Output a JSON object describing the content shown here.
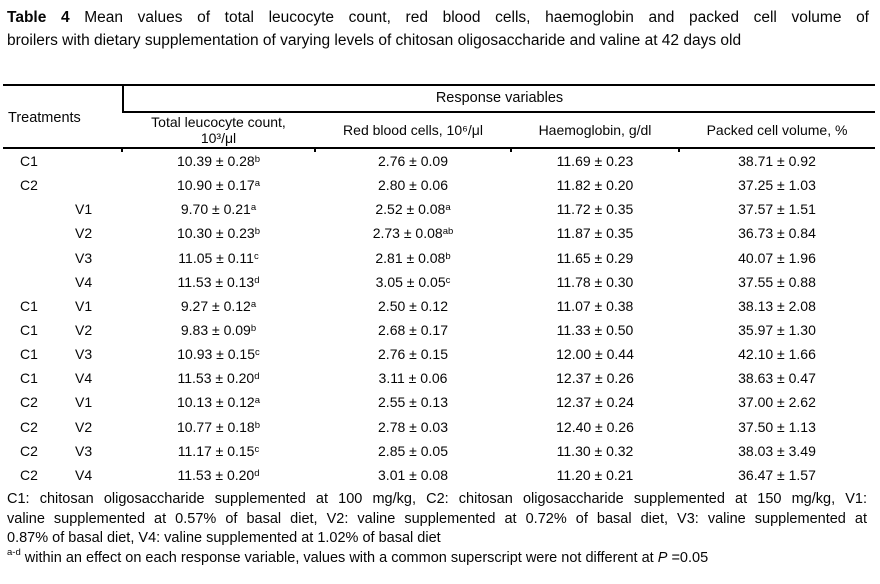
{
  "title": {
    "label": "Table 4",
    "line1_rest": "Mean values of total leucocyte count, red blood cells, haemoglobin and packed cell volume of",
    "line2": "broilers with dietary supplementation of varying levels of chitosan oligosaccharide and valine at 42 days old"
  },
  "table": {
    "treatments_header": "Treatments",
    "group_header": "Response variables",
    "col_headers": [
      {
        "lines": [
          "Total leucocyte count,",
          "10³/μl"
        ]
      },
      {
        "lines": [
          "Red blood cells, 10⁶/μl",
          ""
        ]
      },
      {
        "lines": [
          "Haemoglobin, g/dl",
          ""
        ]
      },
      {
        "lines": [
          "Packed cell volume, %",
          ""
        ]
      }
    ],
    "rows": [
      {
        "t": [
          "C1",
          ""
        ],
        "vals": [
          {
            "v": "10.39 ± 0.28",
            "s": "b"
          },
          {
            "v": "2.76 ± 0.09",
            "s": ""
          },
          {
            "v": "11.69 ± 0.23",
            "s": ""
          },
          {
            "v": "38.71 ± 0.92",
            "s": ""
          }
        ]
      },
      {
        "t": [
          "C2",
          ""
        ],
        "vals": [
          {
            "v": "10.90 ± 0.17",
            "s": "a"
          },
          {
            "v": "2.80 ± 0.06",
            "s": ""
          },
          {
            "v": "11.82 ± 0.20",
            "s": ""
          },
          {
            "v": "37.25 ± 1.03",
            "s": ""
          }
        ]
      },
      {
        "t": [
          "",
          "V1"
        ],
        "vals": [
          {
            "v": "9.70 ± 0.21",
            "s": "a"
          },
          {
            "v": "2.52 ± 0.08",
            "s": "a"
          },
          {
            "v": "11.72 ± 0.35",
            "s": ""
          },
          {
            "v": "37.57 ± 1.51",
            "s": ""
          }
        ]
      },
      {
        "t": [
          "",
          "V2"
        ],
        "vals": [
          {
            "v": "10.30 ± 0.23",
            "s": "b"
          },
          {
            "v": "2.73 ± 0.08",
            "s": "ab"
          },
          {
            "v": "11.87 ± 0.35",
            "s": ""
          },
          {
            "v": "36.73 ± 0.84",
            "s": ""
          }
        ]
      },
      {
        "t": [
          "",
          "V3"
        ],
        "vals": [
          {
            "v": "11.05 ± 0.11",
            "s": "c"
          },
          {
            "v": "2.81 ± 0.08",
            "s": "b"
          },
          {
            "v": "11.65 ± 0.29",
            "s": ""
          },
          {
            "v": "40.07 ± 1.96",
            "s": ""
          }
        ]
      },
      {
        "t": [
          "",
          "V4"
        ],
        "vals": [
          {
            "v": "11.53 ± 0.13",
            "s": "d"
          },
          {
            "v": "3.05 ± 0.05",
            "s": "c"
          },
          {
            "v": "11.78 ± 0.30",
            "s": ""
          },
          {
            "v": "37.55 ± 0.88",
            "s": ""
          }
        ]
      },
      {
        "t": [
          "C1",
          "V1"
        ],
        "vals": [
          {
            "v": "9.27 ± 0.12",
            "s": "a"
          },
          {
            "v": "2.50 ± 0.12",
            "s": ""
          },
          {
            "v": "11.07 ± 0.38",
            "s": ""
          },
          {
            "v": "38.13 ± 2.08",
            "s": ""
          }
        ]
      },
      {
        "t": [
          "C1",
          "V2"
        ],
        "vals": [
          {
            "v": "9.83 ± 0.09",
            "s": "b"
          },
          {
            "v": "2.68 ± 0.17",
            "s": ""
          },
          {
            "v": "11.33 ± 0.50",
            "s": ""
          },
          {
            "v": "35.97 ± 1.30",
            "s": ""
          }
        ]
      },
      {
        "t": [
          "C1",
          "V3"
        ],
        "vals": [
          {
            "v": "10.93 ± 0.15",
            "s": "c"
          },
          {
            "v": "2.76 ± 0.15",
            "s": ""
          },
          {
            "v": "12.00 ± 0.44",
            "s": ""
          },
          {
            "v": "42.10 ± 1.66",
            "s": ""
          }
        ]
      },
      {
        "t": [
          "C1",
          "V4"
        ],
        "vals": [
          {
            "v": "11.53 ± 0.20",
            "s": "d"
          },
          {
            "v": "3.11 ± 0.06",
            "s": ""
          },
          {
            "v": "12.37 ± 0.26",
            "s": ""
          },
          {
            "v": "38.63 ± 0.47",
            "s": ""
          }
        ]
      },
      {
        "t": [
          "C2",
          "V1"
        ],
        "vals": [
          {
            "v": "10.13 ± 0.12",
            "s": "a"
          },
          {
            "v": "2.55 ± 0.13",
            "s": ""
          },
          {
            "v": "12.37 ± 0.24",
            "s": ""
          },
          {
            "v": "37.00 ± 2.62",
            "s": ""
          }
        ]
      },
      {
        "t": [
          "C2",
          "V2"
        ],
        "vals": [
          {
            "v": "10.77 ± 0.18",
            "s": "b"
          },
          {
            "v": "2.78 ± 0.03",
            "s": ""
          },
          {
            "v": "12.40 ± 0.26",
            "s": ""
          },
          {
            "v": "37.50 ± 1.13",
            "s": ""
          }
        ]
      },
      {
        "t": [
          "C2",
          "V3"
        ],
        "vals": [
          {
            "v": "11.17 ± 0.15",
            "s": "c"
          },
          {
            "v": "2.85 ± 0.05",
            "s": ""
          },
          {
            "v": "11.30 ± 0.32",
            "s": ""
          },
          {
            "v": "38.03 ± 3.49",
            "s": ""
          }
        ]
      },
      {
        "t": [
          "C2",
          "V4"
        ],
        "vals": [
          {
            "v": "11.53 ± 0.20",
            "s": "d"
          },
          {
            "v": "3.01 ± 0.08",
            "s": ""
          },
          {
            "v": "11.20 ± 0.21",
            "s": ""
          },
          {
            "v": "36.47 ± 1.57",
            "s": ""
          }
        ]
      }
    ]
  },
  "footnote": {
    "lines": [
      "C1: chitosan oligosaccharide supplemented at 100 mg/kg, C2: chitosan oligosaccharide supplemented at 150 mg/kg, V1:",
      "valine supplemented at 0.57% of basal diet, V2: valine supplemented at 0.72% of basal diet, V3: valine supplemented at",
      "0.87% of basal diet, V4: valine supplemented at 1.02% of basal diet"
    ],
    "sig": {
      "sup": "a-d",
      "pre": " within an effect on each response variable, values with a common superscript were not different at ",
      "p": "P",
      "post": " =0.05"
    }
  }
}
